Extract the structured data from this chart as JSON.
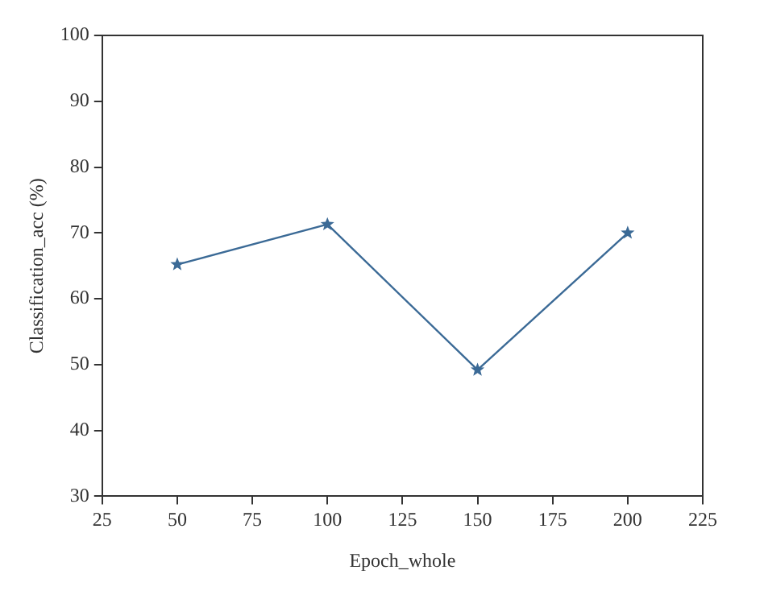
{
  "chart_data": {
    "type": "line",
    "xlabel": "Epoch_whole",
    "ylabel": "Classification_acc (%)",
    "x": [
      50,
      100,
      150,
      200
    ],
    "series": [
      {
        "color": "#3b6a96",
        "values": [
          65.2,
          71.3,
          49.2,
          70.0
        ]
      }
    ],
    "xlim": [
      25,
      225
    ],
    "xticks": [
      25,
      50,
      75,
      100,
      125,
      150,
      175,
      200,
      225
    ],
    "ylim": [
      30,
      100
    ],
    "yticks": [
      30,
      40,
      50,
      60,
      70,
      80,
      90,
      100
    ],
    "grid": false,
    "legend": false,
    "marker": "star",
    "line_style": "solid"
  }
}
